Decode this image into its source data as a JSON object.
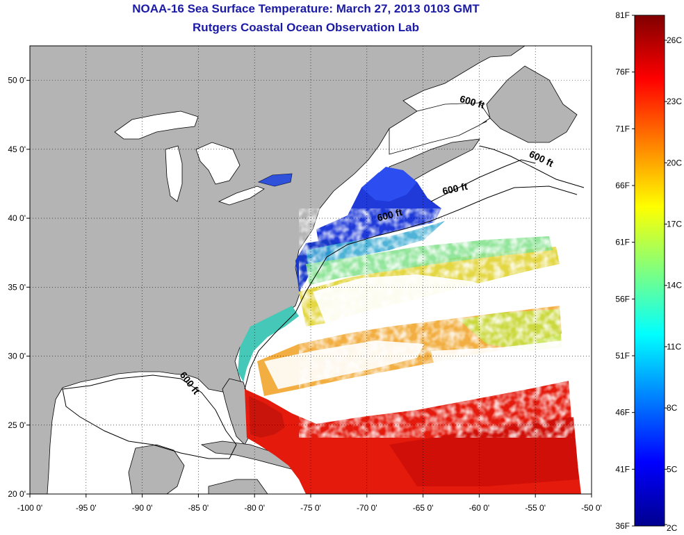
{
  "title": "NOAA-16 Sea Surface Temperature:  March 27, 2013 0103 GMT",
  "subtitle": "Rutgers Coastal Ocean Observation Lab",
  "map": {
    "lon_range": [
      -100,
      -50
    ],
    "lat_range": [
      20,
      52.5
    ],
    "lon_ticks": [
      {
        "value": -100,
        "label": "-100 0'"
      },
      {
        "value": -95,
        "label": "-95 0'"
      },
      {
        "value": -90,
        "label": "-90 0'"
      },
      {
        "value": -85,
        "label": "-85 0'"
      },
      {
        "value": -80,
        "label": "-80 0'"
      },
      {
        "value": -75,
        "label": "-75 0'"
      },
      {
        "value": -70,
        "label": "-70 0'"
      },
      {
        "value": -65,
        "label": "-65 0'"
      },
      {
        "value": -60,
        "label": "-60 0'"
      },
      {
        "value": -55,
        "label": "-55 0'"
      },
      {
        "value": -50,
        "label": "-50 0'"
      }
    ],
    "lat_ticks": [
      {
        "value": 20,
        "label": "20 0'"
      },
      {
        "value": 25,
        "label": "25 0'"
      },
      {
        "value": 30,
        "label": "30 0'"
      },
      {
        "value": 35,
        "label": "35 0'"
      },
      {
        "value": 40,
        "label": "40 0'"
      },
      {
        "value": 45,
        "label": "45 0'"
      },
      {
        "value": 50,
        "label": "50 0'"
      }
    ],
    "grid": "dotted",
    "land_color": "#b4b4b4",
    "no_data_color": "#ffffff",
    "contour_labels": [
      {
        "text": "600 ft",
        "lon": -86.0,
        "lat": 27.9,
        "angle": 52
      },
      {
        "text": "600 ft",
        "lon": -67.9,
        "lat": 40.0,
        "angle": -14
      },
      {
        "text": "600 ft",
        "lon": -62.1,
        "lat": 41.9,
        "angle": -12
      },
      {
        "text": "600 ft",
        "lon": -60.7,
        "lat": 48.2,
        "angle": 16
      },
      {
        "text": "600 ft",
        "lon": -54.6,
        "lat": 44.1,
        "angle": 25
      }
    ]
  },
  "colorbar": {
    "fahrenheit_labels": [
      "81F",
      "76F",
      "71F",
      "66F",
      "61F",
      "56F",
      "51F",
      "46F",
      "41F",
      "36F"
    ],
    "celsius_labels": [
      "26C",
      "23C",
      "20C",
      "17C",
      "14C",
      "11C",
      "8C",
      "5C",
      "2C"
    ],
    "min_f": 36,
    "max_f": 81,
    "colormap": "jet"
  }
}
